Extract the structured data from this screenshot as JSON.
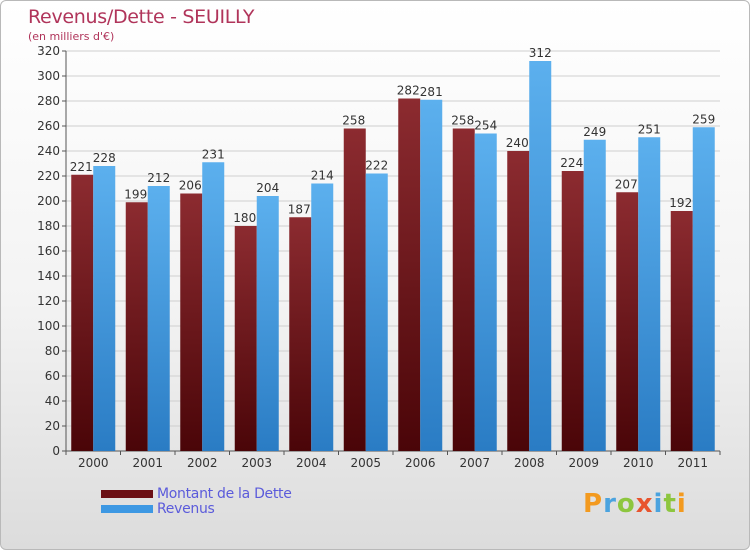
{
  "title": "Revenus/Dette - SEUILLY",
  "subtitle": "(en milliers d'€)",
  "logo": "Proxiti",
  "colors": {
    "dette": "#6b0f14",
    "revenus": "#3d98e3",
    "title": "#b0345a",
    "legend_text": "#5b5bdb"
  },
  "legend": [
    {
      "label": "Montant de la Dette",
      "color": "#6b0f14"
    },
    {
      "label": "Revenus",
      "color": "#3d98e3"
    }
  ],
  "chart_data": {
    "type": "bar",
    "title": "Revenus/Dette - SEUILLY",
    "subtitle": "(en milliers d'€)",
    "xlabel": "",
    "ylabel": "",
    "categories": [
      "2000",
      "2001",
      "2002",
      "2003",
      "2004",
      "2005",
      "2006",
      "2007",
      "2008",
      "2009",
      "2010",
      "2011"
    ],
    "series": [
      {
        "name": "Montant de la Dette",
        "values": [
          221,
          199,
          206,
          180,
          187,
          258,
          282,
          258,
          240,
          224,
          207,
          192
        ]
      },
      {
        "name": "Revenus",
        "values": [
          228,
          212,
          231,
          204,
          214,
          222,
          281,
          254,
          312,
          249,
          251,
          259
        ]
      }
    ],
    "ylim": [
      0,
      320
    ],
    "yticks": [
      0,
      20,
      40,
      60,
      80,
      100,
      120,
      140,
      160,
      180,
      200,
      220,
      240,
      260,
      280,
      300,
      320
    ],
    "grid": true,
    "legend_position": "bottom-left",
    "data_labels": true
  }
}
